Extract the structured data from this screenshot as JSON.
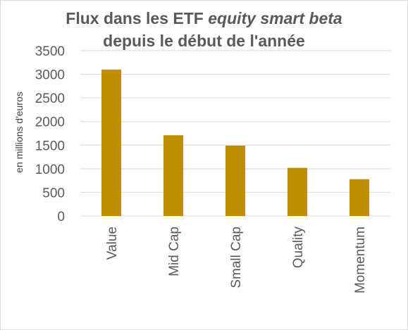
{
  "chart_data": {
    "type": "bar",
    "title_line1_prefix": "Flux dans les ETF ",
    "title_line1_italic": "equity smart beta",
    "title_line2": "depuis le début de l'année",
    "ylabel": "en millions d'euros",
    "xlabel": "",
    "categories": [
      "Value",
      "Mid Cap",
      "Small Cap",
      "Quality",
      "Momentum"
    ],
    "values": [
      3100,
      1710,
      1490,
      1020,
      780
    ],
    "ylim": [
      0,
      3500
    ],
    "yticks": [
      0,
      500,
      1000,
      1500,
      2000,
      2500,
      3000,
      3500
    ],
    "grid": true,
    "legend": "none",
    "colors": {
      "bar": "#BF8F00",
      "grid": "#d9d9d9",
      "text": "#595959"
    }
  }
}
